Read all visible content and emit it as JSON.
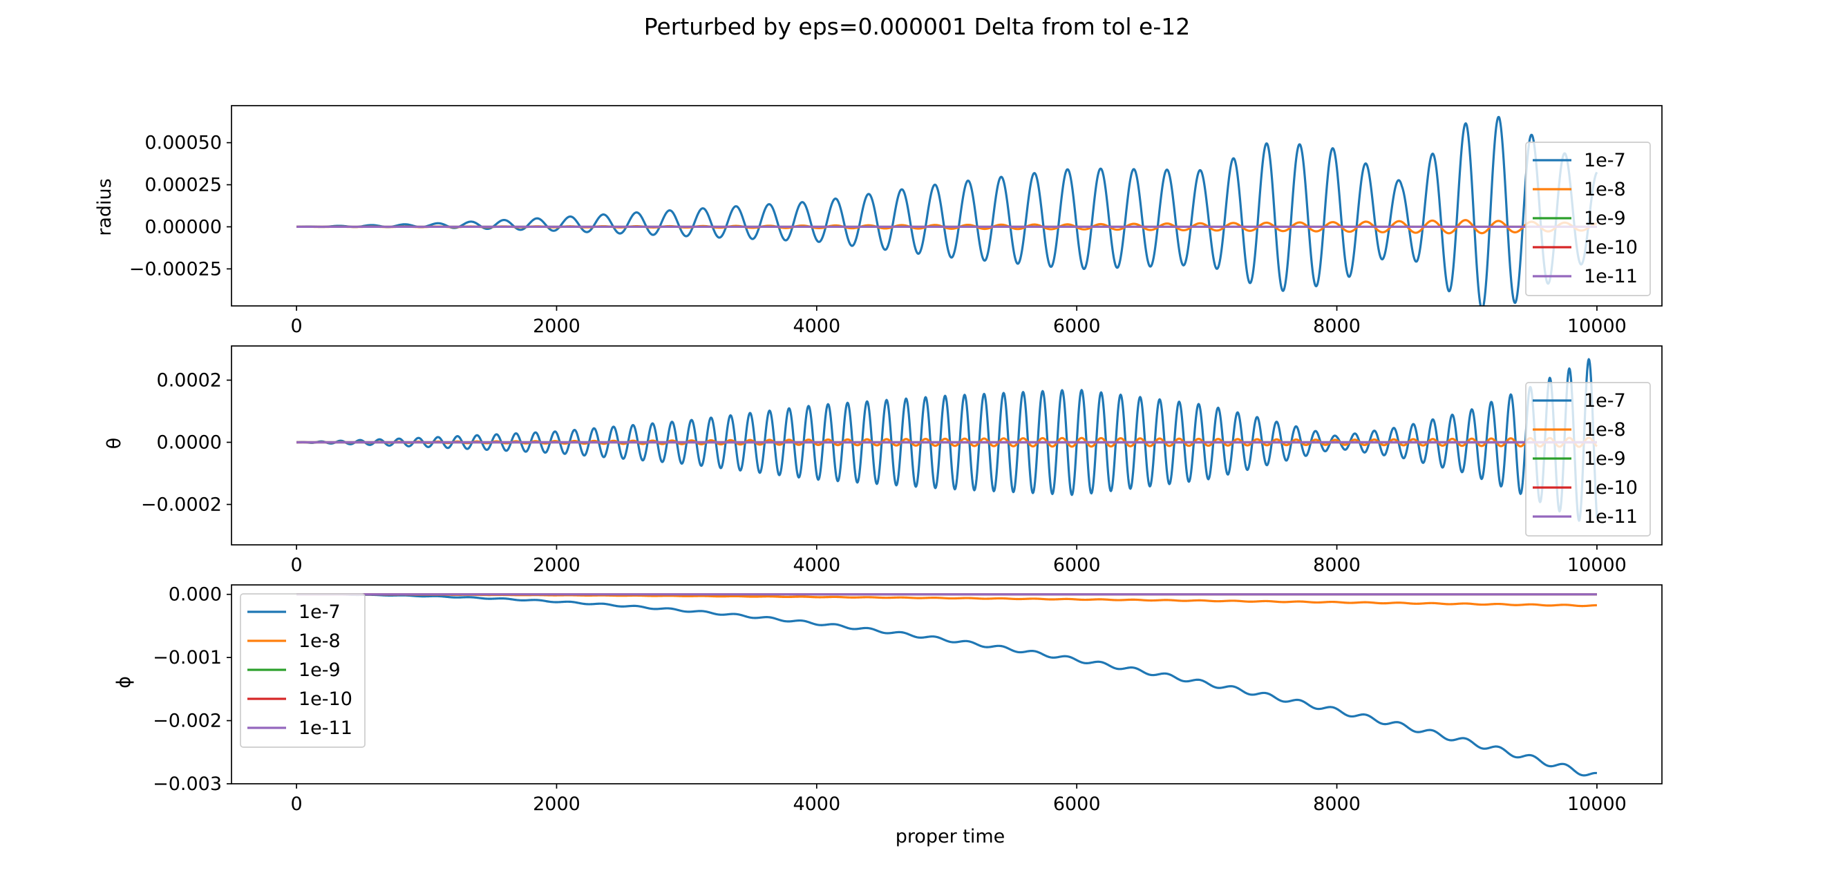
{
  "figure": {
    "title": "Perturbed by eps=0.000001 Delta from tol e-12"
  },
  "chart_data": [
    {
      "type": "line",
      "ylabel": "radius",
      "xlabel": "",
      "xlim": [
        -500,
        10500
      ],
      "ylim": [
        -0.00047,
        0.00072
      ],
      "xticks": [
        0,
        2000,
        4000,
        6000,
        8000,
        10000
      ],
      "yticks": [
        -0.00025,
        0.0,
        0.00025,
        0.0005
      ],
      "ytick_labels": [
        "−0.00025",
        "0.00000",
        "0.00025",
        "0.00050"
      ],
      "grid": false,
      "legend_position": "right",
      "series": [
        {
          "name": "1e-7",
          "color": "#1f77b4",
          "model": {
            "kind": "osc",
            "period": 255,
            "offset_end": 8e-05,
            "amp_points": [
              [
                0,
                0
              ],
              [
                1000,
                1e-05
              ],
              [
                2000,
                4e-05
              ],
              [
                3000,
                8e-05
              ],
              [
                4000,
                0.00012
              ],
              [
                5000,
                0.00022
              ],
              [
                6000,
                0.0003
              ],
              [
                7000,
                0.00028
              ],
              [
                7500,
                0.00045
              ],
              [
                8000,
                0.0004
              ],
              [
                8500,
                0.0002
              ],
              [
                9000,
                0.00055
              ],
              [
                9250,
                0.00058
              ],
              [
                10000,
                0.00025
              ]
            ]
          }
        },
        {
          "name": "1e-8",
          "color": "#ff7f0e",
          "model": {
            "kind": "osc",
            "period": 255,
            "offset_end": 0.0,
            "amp_points": [
              [
                0,
                0
              ],
              [
                3000,
                4e-06
              ],
              [
                6000,
                1.5e-05
              ],
              [
                8000,
                2.8e-05
              ],
              [
                9000,
                4e-05
              ],
              [
                10000,
                2e-05
              ]
            ]
          }
        },
        {
          "name": "1e-9",
          "color": "#2ca02c",
          "model": {
            "kind": "flat"
          }
        },
        {
          "name": "1e-10",
          "color": "#d62728",
          "model": {
            "kind": "flat"
          }
        },
        {
          "name": "1e-11",
          "color": "#9467bd",
          "model": {
            "kind": "flat"
          }
        }
      ]
    },
    {
      "type": "line",
      "ylabel": "θ",
      "xlabel": "",
      "xlim": [
        -500,
        10500
      ],
      "ylim": [
        -0.00033,
        0.00031
      ],
      "xticks": [
        0,
        2000,
        4000,
        6000,
        8000,
        10000
      ],
      "yticks": [
        -0.0002,
        0.0,
        0.0002
      ],
      "ytick_labels": [
        "−0.0002",
        "0.0000",
        "0.0002"
      ],
      "grid": false,
      "legend_position": "right",
      "series": [
        {
          "name": "1e-7",
          "color": "#1f77b4",
          "model": {
            "kind": "osc",
            "period": 150,
            "offset_end": 0.0,
            "amp_points": [
              [
                0,
                0
              ],
              [
                1000,
                1.5e-05
              ],
              [
                2000,
                3.5e-05
              ],
              [
                3000,
                7e-05
              ],
              [
                4000,
                0.00012
              ],
              [
                5000,
                0.00015
              ],
              [
                6000,
                0.00017
              ],
              [
                7000,
                0.00012
              ],
              [
                7500,
                7e-05
              ],
              [
                8000,
                2e-05
              ],
              [
                8500,
                5e-05
              ],
              [
                9000,
                0.0001
              ],
              [
                9500,
                0.00018
              ],
              [
                10000,
                0.00028
              ]
            ]
          }
        },
        {
          "name": "1e-8",
          "color": "#ff7f0e",
          "model": {
            "kind": "osc",
            "period": 150,
            "offset_end": 0.0,
            "amp_points": [
              [
                0,
                0
              ],
              [
                3000,
                6e-06
              ],
              [
                6000,
                1.4e-05
              ],
              [
                8000,
                8e-06
              ],
              [
                10000,
                1.5e-05
              ]
            ]
          }
        },
        {
          "name": "1e-9",
          "color": "#2ca02c",
          "model": {
            "kind": "flat"
          }
        },
        {
          "name": "1e-10",
          "color": "#d62728",
          "model": {
            "kind": "flat"
          }
        },
        {
          "name": "1e-11",
          "color": "#9467bd",
          "model": {
            "kind": "flat"
          }
        }
      ]
    },
    {
      "type": "line",
      "ylabel": "ϕ",
      "xlabel": "proper time",
      "xlim": [
        -500,
        10500
      ],
      "ylim": [
        -0.003,
        0.00015
      ],
      "xticks": [
        0,
        2000,
        4000,
        6000,
        8000,
        10000
      ],
      "yticks": [
        -0.003,
        -0.002,
        -0.001,
        0.0
      ],
      "ytick_labels": [
        "−0.003",
        "−0.002",
        "−0.001",
        "0.000"
      ],
      "grid": false,
      "legend_position": "upper left",
      "series": [
        {
          "name": "1e-7",
          "color": "#1f77b4",
          "model": {
            "kind": "drift",
            "end": -0.00288,
            "power": 2,
            "ripple_period": 255,
            "ripple_amp_end": 5e-05
          }
        },
        {
          "name": "1e-8",
          "color": "#ff7f0e",
          "model": {
            "kind": "drift",
            "end": -0.00018,
            "power": 1.6,
            "ripple_period": 255,
            "ripple_amp_end": 8e-06
          }
        },
        {
          "name": "1e-9",
          "color": "#2ca02c",
          "model": {
            "kind": "flat"
          }
        },
        {
          "name": "1e-10",
          "color": "#d62728",
          "model": {
            "kind": "flat"
          }
        },
        {
          "name": "1e-11",
          "color": "#9467bd",
          "model": {
            "kind": "flat"
          }
        }
      ]
    }
  ]
}
